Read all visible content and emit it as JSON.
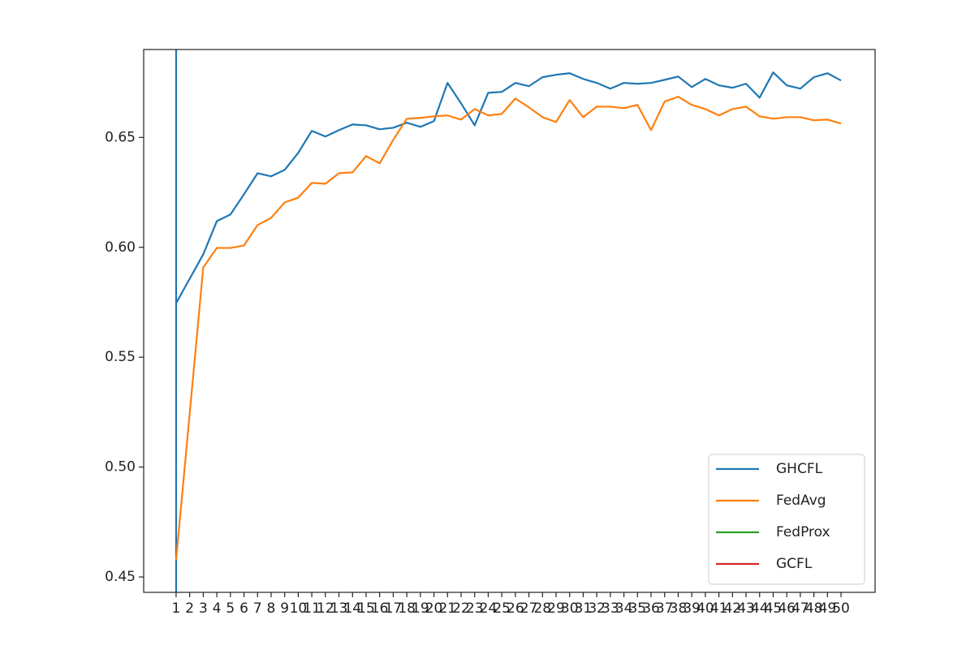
{
  "chart_data": {
    "type": "line",
    "x": [
      1,
      2,
      3,
      4,
      5,
      6,
      7,
      8,
      9,
      10,
      11,
      12,
      13,
      14,
      15,
      16,
      17,
      18,
      19,
      20,
      21,
      22,
      23,
      24,
      25,
      26,
      27,
      28,
      29,
      30,
      31,
      32,
      33,
      34,
      35,
      36,
      37,
      38,
      39,
      40,
      41,
      42,
      43,
      44,
      45,
      46,
      47,
      48,
      49,
      50
    ],
    "series": [
      {
        "name": "GHCFL",
        "color": "#1f77b4",
        "values": [
          0.5746,
          0.5857,
          0.5968,
          0.6119,
          0.6149,
          0.6241,
          0.6337,
          0.6323,
          0.6352,
          0.643,
          0.653,
          0.6504,
          0.6533,
          0.6559,
          0.6555,
          0.6537,
          0.6544,
          0.6567,
          0.6548,
          0.6574,
          0.6748,
          0.6655,
          0.6555,
          0.6703,
          0.6707,
          0.6748,
          0.6733,
          0.6774,
          0.6785,
          0.6792,
          0.6766,
          0.6748,
          0.6722,
          0.6748,
          0.6744,
          0.6748,
          0.6762,
          0.6777,
          0.6729,
          0.6766,
          0.6737,
          0.6726,
          0.6744,
          0.6681,
          0.6796,
          0.6737,
          0.6722,
          0.6774,
          0.6792,
          0.6759
        ]
      },
      {
        "name": "FedAvg",
        "color": "#ff7f0e",
        "values": [
          0.4578,
          0.5243,
          0.5908,
          0.5997,
          0.5997,
          0.6008,
          0.6101,
          0.6134,
          0.6204,
          0.6226,
          0.6293,
          0.6289,
          0.6337,
          0.6341,
          0.6415,
          0.6382,
          0.6489,
          0.6585,
          0.6589,
          0.6596,
          0.66,
          0.6581,
          0.6629,
          0.66,
          0.6607,
          0.6677,
          0.6637,
          0.6592,
          0.657,
          0.667,
          0.6592,
          0.664,
          0.664,
          0.6633,
          0.6648,
          0.6533,
          0.6663,
          0.6685,
          0.6648,
          0.6629,
          0.66,
          0.6629,
          0.664,
          0.6596,
          0.6585,
          0.6592,
          0.6592,
          0.6578,
          0.6581,
          0.6563
        ]
      },
      {
        "name": "FedProx",
        "color": "#2ca02c"
      },
      {
        "name": "GCFL",
        "color": "#d62728"
      }
    ],
    "vline": {
      "x": 1,
      "color": "#1f77b4"
    },
    "xlim": [
      -1.39,
      52.51
    ],
    "xticks": [
      1,
      2,
      3,
      4,
      5,
      6,
      7,
      8,
      9,
      10,
      11,
      12,
      13,
      14,
      15,
      16,
      17,
      18,
      19,
      20,
      21,
      22,
      23,
      24,
      25,
      26,
      27,
      28,
      29,
      30,
      31,
      32,
      33,
      34,
      35,
      36,
      37,
      38,
      39,
      40,
      41,
      42,
      43,
      44,
      45,
      46,
      47,
      48,
      49,
      50
    ],
    "ylim": [
      0.443,
      0.69
    ],
    "yticks": [
      0.45,
      {
        "value": 0.5,
        "label": "0.50"
      },
      0.55,
      {
        "value": 0.6,
        "label": "0.60"
      },
      0.65
    ],
    "grid": false,
    "legend": "lower right"
  }
}
